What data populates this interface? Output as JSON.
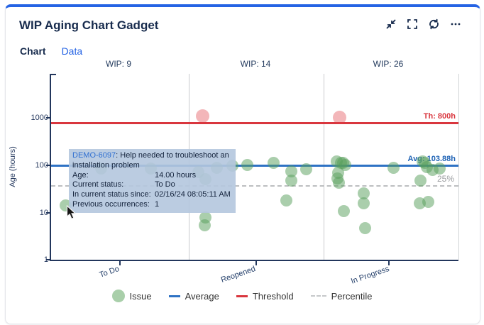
{
  "header": {
    "title": "WIP Aging Chart Gadget",
    "icons": [
      "collapse-icon",
      "fullscreen-icon",
      "refresh-icon",
      "more-icon"
    ]
  },
  "tabs": {
    "chart": "Chart",
    "data": "Data"
  },
  "colors": {
    "accent_blue": "#2563e4",
    "title_navy": "#172b4d",
    "threshold_red": "#d9363e",
    "average_blue": "#2e72c4",
    "percentile_gray": "#bcbec0",
    "issue_green": "rgba(86,158,90,0.5)",
    "over_threshold_pink": "rgba(224,62,72,0.38)",
    "tooltip_bg": "rgba(180,199,222,0.9)"
  },
  "chart_data": {
    "type": "scatter",
    "ylabel": "Age (hours)",
    "y_scale": "log",
    "ylim": [
      1,
      2000
    ],
    "y_ticks": [
      "1000",
      "100",
      "10",
      "1"
    ],
    "grid": "column-separators",
    "legend_position": "bottom",
    "columns": [
      {
        "status": "To Do",
        "wip_label": "WIP: 9",
        "wip": 9
      },
      {
        "status": "Reopened",
        "wip_label": "WIP: 14",
        "wip": 14
      },
      {
        "status": "In Progress",
        "wip_label": "WIP: 26",
        "wip": 26
      }
    ],
    "threshold": {
      "label": "Th: 800h",
      "hours": 800
    },
    "average": {
      "label": "Avg: 103.88h",
      "hours": 103.88
    },
    "percentile": {
      "label": "25%",
      "hours": 37
    },
    "points": [
      {
        "column": "To Do",
        "x": 90,
        "age_hours": 14,
        "hovered": true
      },
      {
        "column": "To Do",
        "x": 140,
        "age_hours": 85
      },
      {
        "column": "To Do",
        "x": 210,
        "age_hours": 84
      },
      {
        "column": "Reopened",
        "x": 277,
        "age_hours": 71
      },
      {
        "column": "Reopened",
        "x": 287,
        "age_hours": 50
      },
      {
        "column": "Reopened",
        "x": 303,
        "age_hours": 87
      },
      {
        "column": "Reopened",
        "x": 325,
        "age_hours": 97
      },
      {
        "column": "Reopened",
        "x": 346,
        "age_hours": 102
      },
      {
        "column": "Reopened",
        "x": 383,
        "age_hours": 111
      },
      {
        "column": "Reopened",
        "x": 408,
        "age_hours": 73
      },
      {
        "column": "Reopened",
        "x": 429,
        "age_hours": 81
      },
      {
        "column": "Reopened",
        "x": 408,
        "age_hours": 47
      },
      {
        "column": "Reopened",
        "x": 401,
        "age_hours": 18
      },
      {
        "column": "Reopened",
        "x": 287,
        "age_hours": 7.9
      },
      {
        "column": "Reopened",
        "x": 286,
        "age_hours": 5.4
      },
      {
        "column": "Reopened",
        "x": 283,
        "age_hours": 1100,
        "over_threshold": true
      },
      {
        "column": "In Progress",
        "x": 476,
        "age_hours": 1000,
        "over_threshold": true
      },
      {
        "column": "In Progress",
        "x": 472,
        "age_hours": 118
      },
      {
        "column": "In Progress",
        "x": 478,
        "age_hours": 113
      },
      {
        "column": "In Progress",
        "x": 481,
        "age_hours": 110
      },
      {
        "column": "In Progress",
        "x": 484,
        "age_hours": 100
      },
      {
        "column": "In Progress",
        "x": 474,
        "age_hours": 69
      },
      {
        "column": "In Progress",
        "x": 473,
        "age_hours": 52
      },
      {
        "column": "In Progress",
        "x": 475,
        "age_hours": 42
      },
      {
        "column": "In Progress",
        "x": 552,
        "age_hours": 87
      },
      {
        "column": "In Progress",
        "x": 510,
        "age_hours": 25
      },
      {
        "column": "In Progress",
        "x": 510,
        "age_hours": 15.5
      },
      {
        "column": "In Progress",
        "x": 482,
        "age_hours": 10.5
      },
      {
        "column": "In Progress",
        "x": 512,
        "age_hours": 4.7
      },
      {
        "column": "In Progress",
        "x": 593,
        "age_hours": 120
      },
      {
        "column": "In Progress",
        "x": 596,
        "age_hours": 113
      },
      {
        "column": "In Progress",
        "x": 599,
        "age_hours": 90
      },
      {
        "column": "In Progress",
        "x": 607,
        "age_hours": 78
      },
      {
        "column": "In Progress",
        "x": 617,
        "age_hours": 83
      },
      {
        "column": "In Progress",
        "x": 590,
        "age_hours": 47
      },
      {
        "column": "In Progress",
        "x": 589,
        "age_hours": 15.5
      },
      {
        "column": "In Progress",
        "x": 601,
        "age_hours": 16.5
      }
    ]
  },
  "tooltip": {
    "issue_key": "DEMO-6097",
    "summary": ": Help needed to troubleshoot an installation problem",
    "rows": [
      {
        "label": "Age:",
        "value": "14.00 hours"
      },
      {
        "label": "Current status:",
        "value": "To Do"
      },
      {
        "label": "In current status since:",
        "value": "02/16/24 08:05:11 AM"
      },
      {
        "label": "Previous occurrences:",
        "value": "1"
      }
    ]
  },
  "legend": {
    "items": [
      {
        "label": "Issue",
        "swatch": "green-dot"
      },
      {
        "label": "Average",
        "swatch": "blue-line"
      },
      {
        "label": "Threshold",
        "swatch": "red-line"
      },
      {
        "label": "Percentile",
        "swatch": "gray-dashed-line"
      }
    ]
  }
}
